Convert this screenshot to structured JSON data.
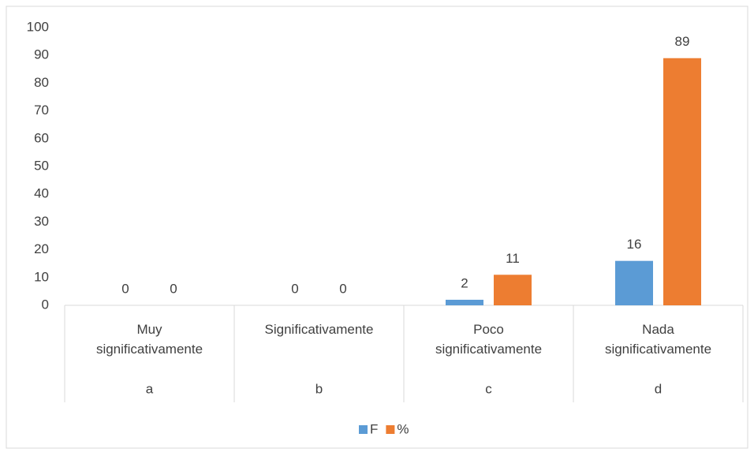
{
  "chart_data": {
    "type": "bar",
    "categories": [
      "Muy significativamente",
      "Significativamente",
      "Poco significativamente",
      "Nada significativamente"
    ],
    "category_groups": [
      "a",
      "b",
      "c",
      "d"
    ],
    "series": [
      {
        "name": "F",
        "color": "#5b9bd5",
        "values": [
          0,
          0,
          2,
          16
        ]
      },
      {
        "name": "%",
        "color": "#ed7d31",
        "values": [
          0,
          0,
          11,
          89
        ]
      }
    ],
    "ylim": [
      0,
      100
    ],
    "yticks": [
      0,
      10,
      20,
      30,
      40,
      50,
      60,
      70,
      80,
      90,
      100
    ],
    "grid": false,
    "legend": "bottom"
  }
}
